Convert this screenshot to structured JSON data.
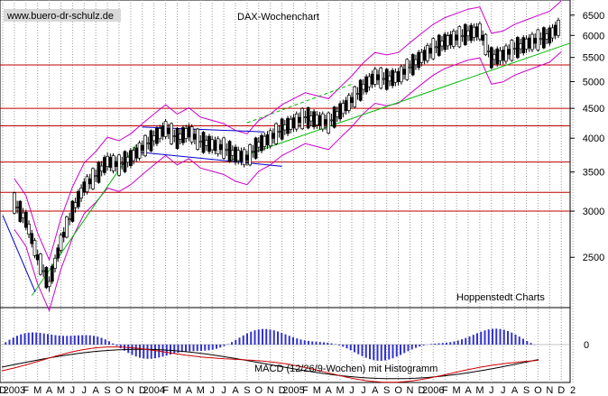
{
  "chart_data": [
    {
      "type": "candlestick",
      "title": "DAX-Wochenchart",
      "watermark": "www.buero-dr-schulz.de",
      "source": "Hoppenstedt Charts",
      "y_scale": "log",
      "ylim": [
        2050,
        6900
      ],
      "y_ticks": [
        2500,
        3000,
        3500,
        4000,
        4500,
        5000,
        5500,
        6000,
        6500
      ],
      "x_tick_labels": [
        "D",
        "2003",
        "F",
        "M",
        "A",
        "M",
        "J",
        "J",
        "A",
        "S",
        "O",
        "N",
        "D",
        "2004",
        "F",
        "M",
        "A",
        "M",
        "J",
        "J",
        "A",
        "S",
        "O",
        "N",
        "D",
        "2005",
        "F",
        "M",
        "A",
        "M",
        "J",
        "J",
        "A",
        "S",
        "O",
        "N",
        "D",
        "2006",
        "F",
        "M",
        "A",
        "M",
        "J",
        "J",
        "A",
        "S",
        "O",
        "N",
        "D",
        "2"
      ],
      "x_range": [
        0,
        49
      ],
      "price_weeks": [
        [
          0.5,
          3100
        ],
        [
          1.0,
          2900
        ],
        [
          1.5,
          2500
        ],
        [
          2.0,
          2250
        ],
        [
          2.5,
          2650
        ],
        [
          3.0,
          3000
        ],
        [
          3.5,
          3300
        ],
        [
          4.0,
          3450
        ],
        [
          4.5,
          3650
        ],
        [
          5.0,
          3600
        ],
        [
          5.5,
          3700
        ],
        [
          6.0,
          3850
        ],
        [
          6.5,
          4000
        ],
        [
          7.0,
          4150
        ],
        [
          7.5,
          4000
        ],
        [
          8.0,
          4100
        ],
        [
          8.5,
          3950
        ],
        [
          9.0,
          3900
        ],
        [
          9.5,
          3850
        ],
        [
          10.0,
          3750
        ],
        [
          10.5,
          3700
        ],
        [
          11.0,
          3900
        ],
        [
          11.5,
          4000
        ],
        [
          12.0,
          4150
        ],
        [
          12.5,
          4250
        ],
        [
          13.0,
          4350
        ],
        [
          13.5,
          4300
        ],
        [
          14.0,
          4250
        ],
        [
          14.5,
          4450
        ],
        [
          15.0,
          4650
        ],
        [
          15.5,
          4900
        ],
        [
          16.0,
          5100
        ],
        [
          16.5,
          5050
        ],
        [
          17.0,
          5100
        ],
        [
          17.5,
          5300
        ],
        [
          18.0,
          5500
        ],
        [
          18.5,
          5700
        ],
        [
          19.0,
          5850
        ],
        [
          19.5,
          5950
        ],
        [
          20.0,
          6050
        ],
        [
          20.5,
          6100
        ],
        [
          21.0,
          5500
        ],
        [
          21.5,
          5550
        ],
        [
          22.0,
          5700
        ],
        [
          22.5,
          5800
        ],
        [
          23.0,
          5900
        ],
        [
          23.5,
          6000
        ],
        [
          24.0,
          6250
        ]
      ],
      "horizontal_lines": [
        3000,
        3230,
        3640,
        4200,
        4500,
        5340
      ],
      "annotation": "Hoppenstedt Charts"
    },
    {
      "type": "macd",
      "label": "MACD (12/26/9-Wochen) mit Histogramm",
      "y_tick": "0"
    }
  ]
}
